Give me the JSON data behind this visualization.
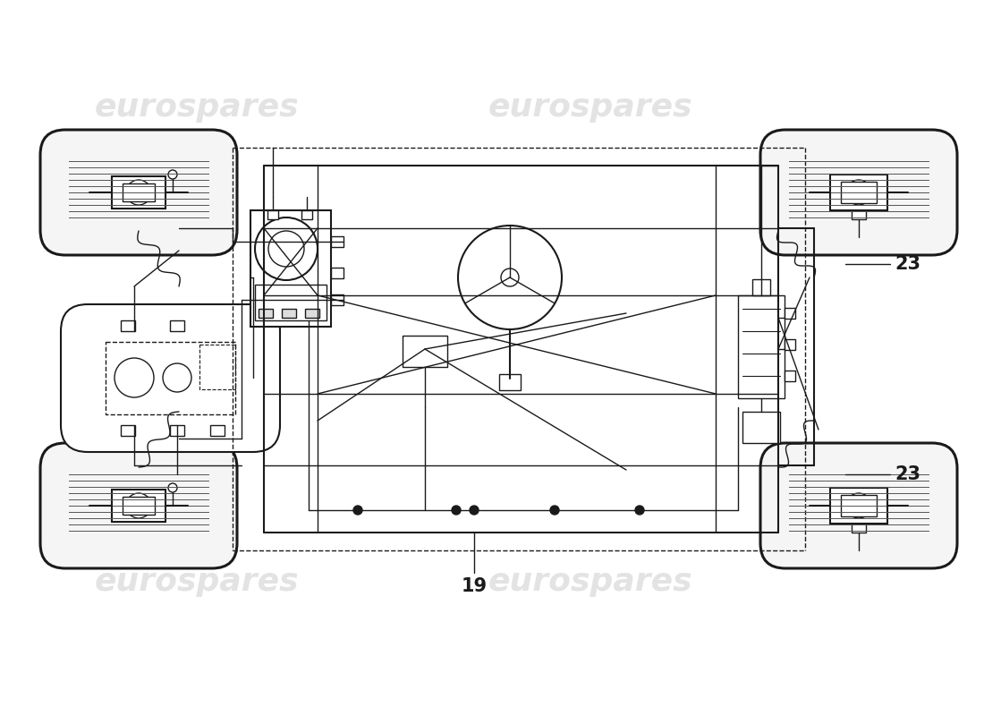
{
  "bg_color": "#ffffff",
  "line_color": "#1a1a1a",
  "watermark_color": "#c8c8c8",
  "watermark_text": "eurospares",
  "label_19": "19",
  "label_23": "23",
  "figsize": [
    11.0,
    8.0
  ],
  "dpi": 100
}
